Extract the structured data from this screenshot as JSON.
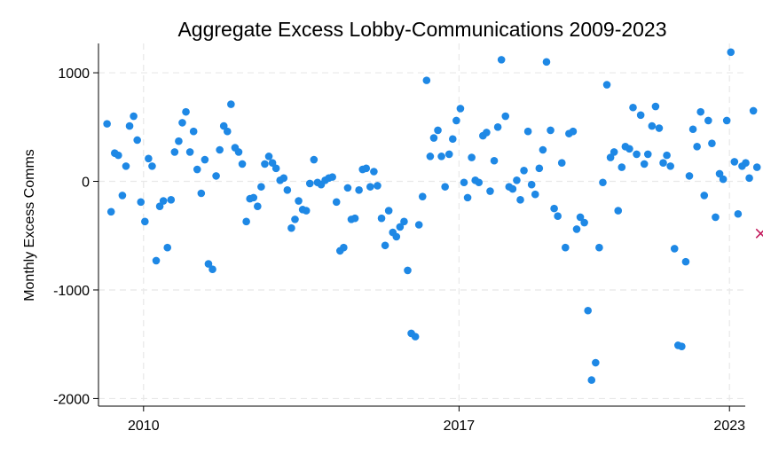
{
  "chart_data": {
    "type": "scatter",
    "title": "Aggregate Excess Lobby-Communications 2009-2023",
    "ylabel": "Monthly Excess Comms",
    "xlabel": "",
    "xlim": [
      2009.0,
      2023.35
    ],
    "ylim": [
      -2070,
      1270
    ],
    "xticks": [
      {
        "value": 2010,
        "label": "2010"
      },
      {
        "value": 2017,
        "label": "2017"
      },
      {
        "value": 2023,
        "label": "2023"
      }
    ],
    "yticks": [
      {
        "value": 1000,
        "label": "1000"
      },
      {
        "value": 0,
        "label": "0"
      },
      {
        "value": -1000,
        "label": "-1000"
      },
      {
        "value": -2000,
        "label": "-2000"
      }
    ],
    "grid": true,
    "colors": {
      "points": "#1e88e5",
      "outlier": "#c2185b",
      "grid": "#e8e8e8"
    },
    "series": [
      {
        "marker": "circle",
        "points": [
          [
            2009.19,
            530
          ],
          [
            2009.28,
            -280
          ],
          [
            2009.36,
            260
          ],
          [
            2009.44,
            240
          ],
          [
            2009.53,
            -130
          ],
          [
            2009.61,
            140
          ],
          [
            2009.69,
            510
          ],
          [
            2009.78,
            600
          ],
          [
            2009.86,
            380
          ],
          [
            2009.94,
            -190
          ],
          [
            2010.03,
            -370
          ],
          [
            2010.11,
            210
          ],
          [
            2010.19,
            140
          ],
          [
            2010.28,
            -730
          ],
          [
            2010.36,
            -230
          ],
          [
            2010.44,
            -180
          ],
          [
            2010.53,
            -610
          ],
          [
            2010.61,
            -170
          ],
          [
            2010.69,
            270
          ],
          [
            2010.78,
            370
          ],
          [
            2010.86,
            540
          ],
          [
            2010.94,
            640
          ],
          [
            2011.03,
            270
          ],
          [
            2011.11,
            460
          ],
          [
            2011.19,
            110
          ],
          [
            2011.28,
            -110
          ],
          [
            2011.36,
            200
          ],
          [
            2011.44,
            -760
          ],
          [
            2011.53,
            -810
          ],
          [
            2011.61,
            50
          ],
          [
            2011.69,
            290
          ],
          [
            2011.78,
            510
          ],
          [
            2011.86,
            460
          ],
          [
            2011.94,
            710
          ],
          [
            2012.03,
            310
          ],
          [
            2012.11,
            270
          ],
          [
            2012.19,
            160
          ],
          [
            2012.28,
            -370
          ],
          [
            2012.36,
            -160
          ],
          [
            2012.44,
            -150
          ],
          [
            2012.53,
            -230
          ],
          [
            2012.61,
            -50
          ],
          [
            2012.69,
            160
          ],
          [
            2012.78,
            230
          ],
          [
            2012.86,
            170
          ],
          [
            2012.94,
            120
          ],
          [
            2013.03,
            10
          ],
          [
            2013.11,
            30
          ],
          [
            2013.19,
            -80
          ],
          [
            2013.28,
            -430
          ],
          [
            2013.36,
            -350
          ],
          [
            2013.44,
            -180
          ],
          [
            2013.53,
            -260
          ],
          [
            2013.61,
            -270
          ],
          [
            2013.69,
            -20
          ],
          [
            2013.78,
            200
          ],
          [
            2013.86,
            -10
          ],
          [
            2013.94,
            -30
          ],
          [
            2014.03,
            10
          ],
          [
            2014.11,
            30
          ],
          [
            2014.19,
            40
          ],
          [
            2014.28,
            -190
          ],
          [
            2014.36,
            -640
          ],
          [
            2014.44,
            -610
          ],
          [
            2014.53,
            -60
          ],
          [
            2014.61,
            -350
          ],
          [
            2014.69,
            -340
          ],
          [
            2014.78,
            -80
          ],
          [
            2014.86,
            110
          ],
          [
            2014.94,
            120
          ],
          [
            2015.03,
            -50
          ],
          [
            2015.11,
            90
          ],
          [
            2015.19,
            -40
          ],
          [
            2015.28,
            -340
          ],
          [
            2015.36,
            -590
          ],
          [
            2015.44,
            -270
          ],
          [
            2015.53,
            -470
          ],
          [
            2015.61,
            -510
          ],
          [
            2015.69,
            -420
          ],
          [
            2015.78,
            -370
          ],
          [
            2015.86,
            -820
          ],
          [
            2015.94,
            -1400
          ],
          [
            2016.03,
            -1430
          ],
          [
            2016.11,
            -400
          ],
          [
            2016.19,
            -140
          ],
          [
            2016.28,
            930
          ],
          [
            2016.36,
            230
          ],
          [
            2016.44,
            400
          ],
          [
            2016.53,
            470
          ],
          [
            2016.61,
            230
          ],
          [
            2016.69,
            -50
          ],
          [
            2016.78,
            250
          ],
          [
            2016.86,
            390
          ],
          [
            2016.94,
            560
          ],
          [
            2017.03,
            670
          ],
          [
            2017.11,
            -10
          ],
          [
            2017.19,
            -150
          ],
          [
            2017.28,
            220
          ],
          [
            2017.36,
            10
          ],
          [
            2017.44,
            -10
          ],
          [
            2017.53,
            420
          ],
          [
            2017.61,
            450
          ],
          [
            2017.69,
            -90
          ],
          [
            2017.78,
            190
          ],
          [
            2017.86,
            500
          ],
          [
            2017.94,
            1120
          ],
          [
            2018.03,
            600
          ],
          [
            2018.11,
            -50
          ],
          [
            2018.19,
            -70
          ],
          [
            2018.28,
            10
          ],
          [
            2018.36,
            -170
          ],
          [
            2018.44,
            100
          ],
          [
            2018.53,
            460
          ],
          [
            2018.61,
            -30
          ],
          [
            2018.69,
            -120
          ],
          [
            2018.78,
            120
          ],
          [
            2018.86,
            290
          ],
          [
            2018.94,
            1100
          ],
          [
            2019.03,
            470
          ],
          [
            2019.11,
            -250
          ],
          [
            2019.19,
            -320
          ],
          [
            2019.28,
            170
          ],
          [
            2019.36,
            -610
          ],
          [
            2019.44,
            440
          ],
          [
            2019.53,
            460
          ],
          [
            2019.61,
            -440
          ],
          [
            2019.69,
            -330
          ],
          [
            2019.78,
            -380
          ],
          [
            2019.86,
            -1190
          ],
          [
            2019.94,
            -1830
          ],
          [
            2020.03,
            -1670
          ],
          [
            2020.11,
            -610
          ],
          [
            2020.19,
            -10
          ],
          [
            2020.28,
            890
          ],
          [
            2020.36,
            220
          ],
          [
            2020.44,
            270
          ],
          [
            2020.53,
            -270
          ],
          [
            2020.61,
            130
          ],
          [
            2020.69,
            320
          ],
          [
            2020.78,
            300
          ],
          [
            2020.86,
            680
          ],
          [
            2020.94,
            250
          ],
          [
            2021.03,
            610
          ],
          [
            2021.11,
            160
          ],
          [
            2021.19,
            250
          ],
          [
            2021.28,
            510
          ],
          [
            2021.36,
            690
          ],
          [
            2021.44,
            490
          ],
          [
            2021.53,
            170
          ],
          [
            2021.61,
            240
          ],
          [
            2021.69,
            140
          ],
          [
            2021.78,
            -620
          ],
          [
            2021.86,
            -1510
          ],
          [
            2021.94,
            -1520
          ],
          [
            2022.03,
            -740
          ],
          [
            2022.11,
            50
          ],
          [
            2022.19,
            480
          ],
          [
            2022.28,
            320
          ],
          [
            2022.36,
            640
          ],
          [
            2022.44,
            -130
          ],
          [
            2022.53,
            560
          ],
          [
            2022.61,
            350
          ],
          [
            2022.69,
            -330
          ],
          [
            2022.78,
            70
          ],
          [
            2022.86,
            20
          ],
          [
            2022.94,
            560
          ],
          [
            2023.03,
            1190
          ],
          [
            2023.11,
            180
          ],
          [
            2023.19,
            -300
          ],
          [
            2023.28,
            140
          ],
          [
            2023.36,
            170
          ],
          [
            2023.44,
            30
          ],
          [
            2023.53,
            650
          ],
          [
            2023.61,
            130
          ]
        ]
      },
      {
        "marker": "x",
        "points": [
          [
            2023.69,
            -480
          ]
        ]
      }
    ]
  }
}
